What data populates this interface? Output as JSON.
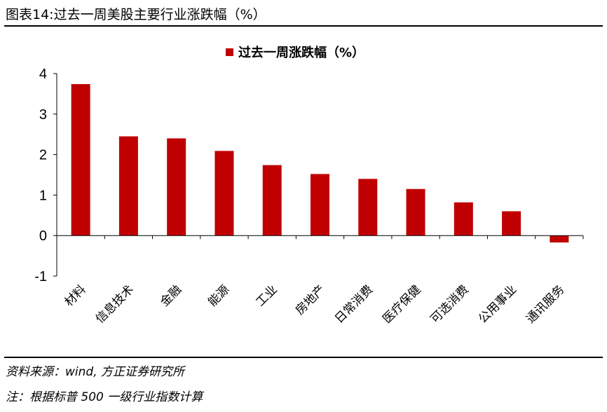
{
  "figure": {
    "title": "图表14:过去一周美股主要行业涨跌幅（%）",
    "source": "资料来源：wind, 方正证券研究所",
    "note": "注：根据标普 500 一级行业指数计算"
  },
  "chart_data": {
    "type": "bar",
    "categories": [
      "材料",
      "信息技术",
      "金融",
      "能源",
      "工业",
      "房地产",
      "日常消费",
      "医疗保健",
      "可选消费",
      "公用事业",
      "通讯服务"
    ],
    "series": [
      {
        "name": "过去一周涨跌幅（%）",
        "values": [
          3.74,
          2.45,
          2.4,
          2.09,
          1.74,
          1.52,
          1.4,
          1.15,
          0.82,
          0.6,
          -0.17
        ],
        "color": "#c00000"
      }
    ],
    "ylim": [
      -1,
      4
    ],
    "yticks": [
      -1,
      0,
      1,
      2,
      3,
      4
    ],
    "legend_position": "top-center",
    "grid": false
  }
}
